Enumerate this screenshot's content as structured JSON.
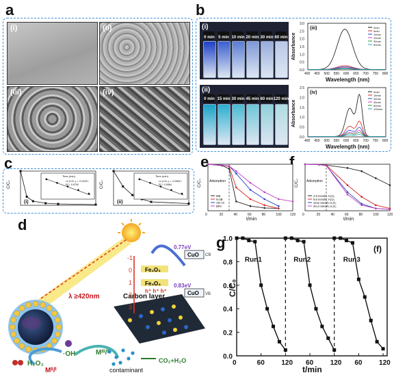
{
  "panels": {
    "a": {
      "label": "a",
      "sub": [
        "(i)",
        "(ii)",
        "(iii)",
        "(iv)"
      ]
    },
    "b": {
      "label": "b",
      "sub_i": "(i)",
      "sub_ii": "(ii)",
      "sub_iii": "(iii)",
      "sub_iv": "(iv)",
      "times_i": [
        "0 min",
        "5 min",
        "10 min",
        "20 min",
        "30 min",
        "60 min"
      ],
      "times_ii": [
        "0 min",
        "15 min",
        "30 min",
        "45 min",
        "60 min",
        "120 min"
      ]
    },
    "c": {
      "label": "c",
      "sub_i": "(i)",
      "sub_ii": "(ii)",
      "ylabel": "C/C₀",
      "xlabel": "Time (min)",
      "inset_y1": "Ln(C/C₀)",
      "inset_y2": "Ln (C/C₀)"
    },
    "d": {
      "label": "d"
    },
    "e": {
      "label": "e"
    },
    "f": {
      "label": "f"
    },
    "g": {
      "label": "g"
    }
  },
  "colors": {
    "blue_dash": "#3b8fd9",
    "sky": "#e8f1fb"
  },
  "chart_data": [
    {
      "type": "line",
      "id": "b-iii",
      "xlabel": "Wavelength (nm)",
      "ylabel": "Absorbance",
      "xlim": [
        400,
        800
      ],
      "ylim": [
        0,
        3.0
      ],
      "x_ticks": [
        400,
        450,
        500,
        550,
        600,
        650,
        700,
        750,
        800
      ],
      "y_ticks": [
        0.0,
        0.5,
        1.0,
        1.5,
        2.0,
        2.5,
        3.0
      ],
      "legend": [
        "0min",
        "5min",
        "10min",
        "20min",
        "30min",
        "60min"
      ],
      "series_peak_at": 590,
      "series": [
        {
          "name": "0min",
          "peak": 2.6
        },
        {
          "name": "5min",
          "peak": 0.25
        },
        {
          "name": "10min",
          "peak": 0.18
        },
        {
          "name": "20min",
          "peak": 0.12
        },
        {
          "name": "30min",
          "peak": 0.08
        },
        {
          "name": "60min",
          "peak": 0.05
        }
      ]
    },
    {
      "type": "line",
      "id": "b-iv",
      "xlabel": "Wavelength (nm)",
      "ylabel": "Absorbance",
      "xlim": [
        400,
        800
      ],
      "ylim": [
        0,
        2.5
      ],
      "x_ticks": [
        400,
        450,
        500,
        550,
        600,
        650,
        700,
        750,
        800
      ],
      "y_ticks": [
        0.0,
        0.5,
        1.0,
        1.5,
        2.0,
        2.5
      ],
      "legend": [
        "0min",
        "15min",
        "30min",
        "45min",
        "60min",
        "120min"
      ],
      "series": [
        {
          "name": "0min",
          "peak": 2.05
        },
        {
          "name": "15min",
          "peak": 0.75
        },
        {
          "name": "30min",
          "peak": 0.45
        },
        {
          "name": "45min",
          "peak": 0.3
        },
        {
          "name": "60min",
          "peak": 0.2
        },
        {
          "name": "120min",
          "peak": 0.1
        }
      ]
    },
    {
      "type": "line",
      "id": "c-i",
      "xlabel": "Time (min)",
      "ylabel": "C/C₀",
      "xlim": [
        0,
        60
      ],
      "ylim": [
        0,
        1.0
      ],
      "x": [
        0,
        5,
        10,
        20,
        30,
        60
      ],
      "values": [
        1.0,
        0.25,
        0.12,
        0.06,
        0.04,
        0.02
      ],
      "inset": {
        "equation": "Ln (C/C₀) = -0.2439 t",
        "r2": "R² = 0.9790"
      }
    },
    {
      "type": "line",
      "id": "c-ii",
      "xlabel": "Time (min)",
      "ylabel": "C/C₀",
      "xlim": [
        0,
        120
      ],
      "ylim": [
        0,
        1.0
      ],
      "x": [
        0,
        15,
        30,
        45,
        60,
        120
      ],
      "values": [
        1.0,
        0.55,
        0.3,
        0.18,
        0.1,
        0.05
      ],
      "inset": {
        "equation": "Ln (C/C₀) = -0.0364 t",
        "r2": "R² = 0.9884"
      }
    },
    {
      "type": "line",
      "id": "e",
      "xlabel": "t/min",
      "ylabel": "C/C₀",
      "xlim": [
        0,
        120
      ],
      "ylim": [
        0,
        1.0
      ],
      "x_ticks": [
        0,
        20,
        40,
        60,
        80,
        100,
        120
      ],
      "annotation": "Adsorption",
      "series": [
        {
          "name": "MB",
          "color": "#222222",
          "x": [
            0,
            20,
            30,
            40,
            60,
            80,
            100
          ],
          "values": [
            1.0,
            0.97,
            0.9,
            0.2,
            0.1,
            0.06,
            0.05
          ]
        },
        {
          "name": "N-3B",
          "color": "#d62020",
          "x": [
            0,
            20,
            30,
            40,
            60,
            80,
            100
          ],
          "values": [
            1.0,
            0.98,
            0.95,
            0.5,
            0.25,
            0.12,
            0.05
          ]
        },
        {
          "name": "AR-73",
          "color": "#2040c0",
          "x": [
            0,
            20,
            30,
            40,
            60,
            80,
            100
          ],
          "values": [
            1.0,
            0.98,
            0.96,
            0.8,
            0.45,
            0.25,
            0.1
          ]
        },
        {
          "name": "BPA",
          "color": "#c040c0",
          "x": [
            0,
            20,
            30,
            40,
            60,
            80,
            100,
            120
          ],
          "values": [
            1.0,
            0.98,
            0.96,
            0.85,
            0.6,
            0.4,
            0.25,
            0.2
          ]
        }
      ]
    },
    {
      "type": "line",
      "id": "f",
      "xlabel": "t/min",
      "ylabel": "C/C₀",
      "xlim": [
        0,
        120
      ],
      "ylim": [
        0,
        1.0
      ],
      "x_ticks": [
        0,
        20,
        40,
        60,
        80,
        100,
        120
      ],
      "annotation": "Adsorption",
      "series": [
        {
          "name": "4.9 mmol/L H₂O₂",
          "color": "#222222",
          "x": [
            0,
            20,
            30,
            60,
            80,
            100,
            120
          ],
          "values": [
            1.0,
            0.99,
            0.98,
            0.92,
            0.85,
            0.7,
            0.55
          ]
        },
        {
          "name": "9.8 mmol/L H₂O₂",
          "color": "#d62020",
          "x": [
            0,
            20,
            30,
            60,
            80,
            100,
            120
          ],
          "values": [
            1.0,
            0.99,
            0.98,
            0.55,
            0.3,
            0.12,
            0.05
          ]
        },
        {
          "name": "19.6 mmol/L H₂O₂",
          "color": "#2040c0",
          "x": [
            0,
            20,
            30,
            60,
            80,
            100,
            120
          ],
          "values": [
            1.0,
            0.99,
            0.97,
            0.4,
            0.15,
            0.05,
            0.03
          ]
        },
        {
          "name": "29.4 mmol/L H₂O₂",
          "color": "#c040c0",
          "x": [
            0,
            20,
            30,
            60,
            80,
            100,
            120
          ],
          "values": [
            1.0,
            0.99,
            0.97,
            0.35,
            0.12,
            0.05,
            0.03
          ]
        }
      ]
    },
    {
      "type": "line",
      "id": "g",
      "xlabel": "t/min",
      "ylabel": "C/C₀",
      "xlim": [
        0,
        370
      ],
      "ylim": [
        0,
        1.0
      ],
      "x_tick_labels": [
        "0",
        "60",
        "120",
        "60",
        "120",
        "60",
        "120"
      ],
      "y_ticks": [
        0.0,
        0.2,
        0.4,
        0.6,
        0.8,
        1.0
      ],
      "series": [
        {
          "name": "Run1",
          "x": [
            0,
            15,
            30,
            45,
            60,
            75,
            90,
            105,
            120
          ],
          "values": [
            1.0,
            1.0,
            0.98,
            0.97,
            0.6,
            0.4,
            0.25,
            0.12,
            0.05
          ]
        },
        {
          "name": "Run2",
          "x": [
            120,
            135,
            150,
            165,
            180,
            195,
            210,
            225,
            240
          ],
          "values": [
            1.0,
            1.0,
            0.98,
            0.97,
            0.6,
            0.4,
            0.25,
            0.15,
            0.05
          ]
        },
        {
          "name": "Run3",
          "x": [
            240,
            255,
            270,
            285,
            300,
            315,
            330,
            345,
            360
          ],
          "values": [
            1.0,
            1.0,
            0.98,
            0.96,
            0.65,
            0.5,
            0.3,
            0.12,
            0.06
          ]
        }
      ],
      "run_labels": [
        "Run1",
        "Run2",
        "Run3"
      ],
      "corner_label": "(f)"
    }
  ],
  "scheme_d": {
    "uv_light": "λ ≥420nm",
    "carbon_layer": "Carbon layer",
    "fe2o3": "Fe₂O₃",
    "fe3o4": "Fe₃O₄",
    "cuo_top": "CuO",
    "cuo_bot": "CuO",
    "cb_label": "CB",
    "vb_label": "VB",
    "ev1": "0.77eV",
    "ev2": "0.83eV",
    "h2o2": "H₂O₂",
    "oh": "·OH",
    "m23": "Mᴵᴵ/ᴵ",
    "m32": "Mᴵᴵᴵ/ᴵᴵ",
    "contaminant": "contaminant",
    "products": "CO₂+H₂O",
    "scale": [
      "-1",
      "0",
      "1",
      "2",
      "3"
    ],
    "holes": "h⁺ h⁺ h⁺",
    "electrons": "e⁻ e⁻"
  }
}
